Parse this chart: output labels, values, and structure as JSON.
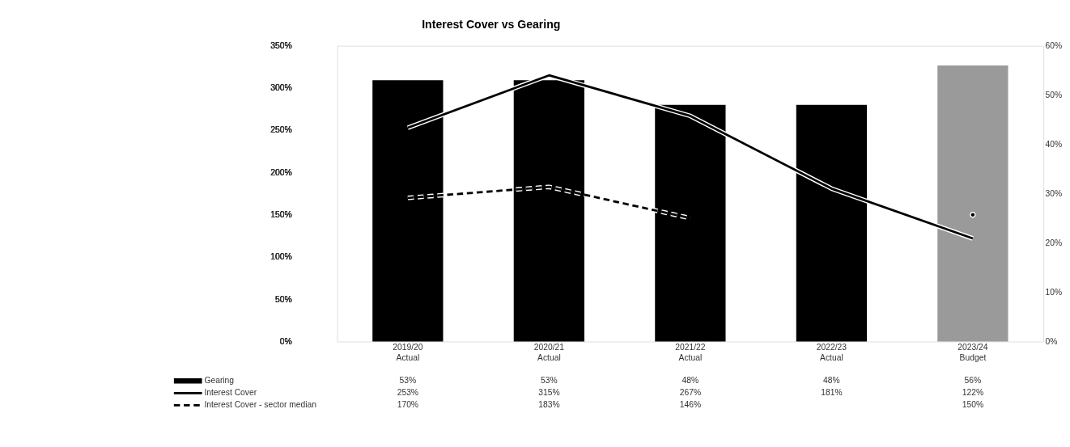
{
  "chart_data": {
    "type": "bar",
    "title": "Interest Cover vs Gearing",
    "categories": [
      "2019/20 Actual",
      "2020/21 Actual",
      "2021/22 Actual",
      "2022/23 Actual",
      "2023/24 Budget"
    ],
    "series": [
      {
        "name": "Gearing",
        "axis": "y2",
        "color": "#000000",
        "colors": [
          "#000000",
          "#000000",
          "#000000",
          "#000000",
          "#9a9a9a"
        ],
        "values": [
          53,
          53,
          48,
          48,
          56
        ],
        "value_labels": [
          "53%",
          "53%",
          "48%",
          "48%",
          "56%"
        ]
      },
      {
        "name": "Interest Cover",
        "type": "line",
        "line_style": "solid",
        "color": "#000000",
        "values": [
          253,
          315,
          267,
          181,
          122
        ],
        "value_labels": [
          "253%",
          "315%",
          "267%",
          "181%",
          "122%"
        ]
      },
      {
        "name": "Interest Cover - sector median",
        "type": "line",
        "line_style": "dashed",
        "color": "#000000",
        "values": [
          170,
          183,
          146,
          null,
          150
        ],
        "value_labels": [
          "170%",
          "183%",
          "146%",
          null,
          "150%"
        ]
      }
    ],
    "ylim": [
      0,
      350
    ],
    "yticks": [
      {
        "value": 0,
        "label": "0%"
      },
      {
        "value": 50,
        "label": "50%"
      },
      {
        "value": 100,
        "label": "100%"
      },
      {
        "value": 150,
        "label": "150%"
      },
      {
        "value": 200,
        "label": "200%"
      },
      {
        "value": 250,
        "label": "250%"
      },
      {
        "value": 300,
        "label": "300%"
      },
      {
        "value": 350,
        "label": "350%"
      }
    ],
    "y2lim": [
      0,
      60
    ],
    "y2ticks": [
      {
        "value": 0,
        "label": "0%"
      },
      {
        "value": 10,
        "label": "10%"
      },
      {
        "value": 20,
        "label": "20%"
      },
      {
        "value": 30,
        "label": "30%"
      },
      {
        "value": 40,
        "label": "40%"
      },
      {
        "value": 50,
        "label": "50%"
      },
      {
        "value": 60,
        "label": "60%"
      }
    ],
    "grid": false,
    "legend": "bottom left"
  }
}
